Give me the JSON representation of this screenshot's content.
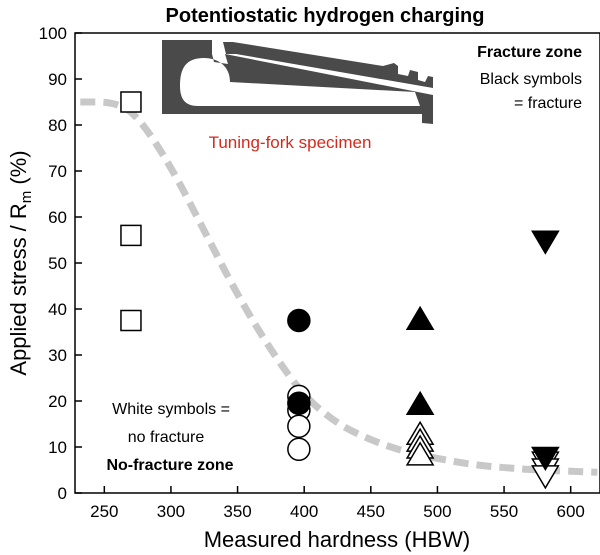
{
  "chart_data": {
    "type": "scatter",
    "title": "Potentiostatic hydrogen charging",
    "xlabel": "Measured hardness (HBW)",
    "ylabel_main": "Applied stress / R",
    "ylabel_sub": "m",
    "ylabel_unit": " (%)",
    "xlim": [
      228,
      622
    ],
    "ylim": [
      0,
      100
    ],
    "x_ticks": [
      250,
      300,
      350,
      400,
      450,
      500,
      550,
      600
    ],
    "y_ticks": [
      0,
      10,
      20,
      30,
      40,
      50,
      60,
      70,
      80,
      90,
      100
    ],
    "grid": false,
    "series": [
      {
        "marker": "square",
        "fill": "white",
        "points": [
          {
            "x": 270,
            "y": 85
          },
          {
            "x": 270,
            "y": 56
          },
          {
            "x": 270,
            "y": 37.5
          }
        ]
      },
      {
        "marker": "circle",
        "fill": "black",
        "points": [
          {
            "x": 396,
            "y": 37.5
          },
          {
            "x": 396,
            "y": 19.5
          }
        ]
      },
      {
        "marker": "circle",
        "fill": "white",
        "points": [
          {
            "x": 396,
            "y": 21
          },
          {
            "x": 396,
            "y": 18
          },
          {
            "x": 396,
            "y": 14.5
          },
          {
            "x": 396,
            "y": 9.5
          }
        ]
      },
      {
        "marker": "triangle-up",
        "fill": "black",
        "points": [
          {
            "x": 487,
            "y": 38
          },
          {
            "x": 487,
            "y": 19.5
          }
        ]
      },
      {
        "marker": "triangle-up",
        "fill": "white",
        "points": [
          {
            "x": 487,
            "y": 13
          },
          {
            "x": 487,
            "y": 11.5
          },
          {
            "x": 487,
            "y": 10
          },
          {
            "x": 487,
            "y": 8.5
          }
        ]
      },
      {
        "marker": "triangle-down",
        "fill": "black",
        "points": [
          {
            "x": 581,
            "y": 54.5
          },
          {
            "x": 581,
            "y": 7.5
          }
        ]
      },
      {
        "marker": "triangle-down",
        "fill": "white",
        "points": [
          {
            "x": 581,
            "y": 6.5
          },
          {
            "x": 581,
            "y": 5
          },
          {
            "x": 581,
            "y": 3.5
          }
        ]
      }
    ],
    "trend_line": {
      "style": "dashed",
      "color": "#c8c8c8",
      "points": [
        [
          232,
          85
        ],
        [
          258,
          85
        ],
        [
          275,
          82
        ],
        [
          300,
          71
        ],
        [
          325,
          57
        ],
        [
          350,
          43
        ],
        [
          375,
          31
        ],
        [
          400,
          21
        ],
        [
          425,
          15
        ],
        [
          450,
          11.5
        ],
        [
          475,
          9
        ],
        [
          500,
          7.5
        ],
        [
          525,
          6.2
        ],
        [
          550,
          5.5
        ],
        [
          575,
          5
        ],
        [
          620,
          4.5
        ]
      ]
    },
    "annotations": {
      "fracture_zone": "Fracture zone",
      "black_symbols_1": "Black symbols",
      "black_symbols_2": "= fracture",
      "white_symbols_1": "White symbols =",
      "white_symbols_2": "no fracture",
      "no_fracture_zone": "No-fracture zone",
      "specimen_label": "Tuning-fork specimen"
    },
    "colors": {
      "specimen_fill": "#4a4a4a",
      "specimen_label": "#d42a1e",
      "trend": "#c8c8c8"
    }
  }
}
